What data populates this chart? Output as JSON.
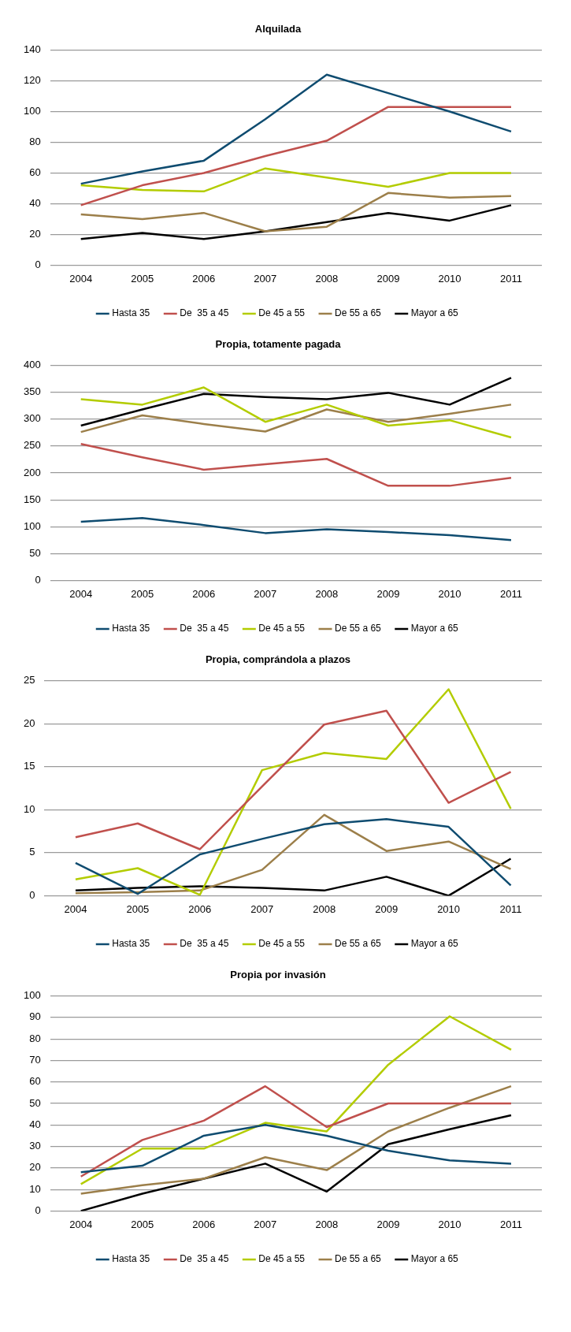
{
  "chart_data": [
    {
      "type": "line",
      "title": "Alquilada",
      "categories": [
        "2004",
        "2005",
        "2006",
        "2007",
        "2008",
        "2009",
        "2010",
        "2011"
      ],
      "ylim": [
        0,
        140
      ],
      "yticks": [
        0,
        20,
        40,
        60,
        80,
        100,
        120,
        140
      ],
      "grid": "y",
      "legend": "bottom",
      "series": [
        {
          "name": "Hasta 35",
          "color": "#0f4c70",
          "values": [
            53,
            61,
            68,
            95,
            124,
            112,
            100,
            87
          ]
        },
        {
          "name": "De  35 a 45",
          "color": "#c0504d",
          "values": [
            39,
            52,
            60,
            71,
            81,
            103,
            103,
            103
          ]
        },
        {
          "name": "De 45 a 55",
          "color": "#b3cc00",
          "values": [
            52,
            49,
            48,
            63,
            57,
            51,
            60,
            60
          ]
        },
        {
          "name": "De 55 a 65",
          "color": "#9c7f4a",
          "values": [
            33,
            30,
            34,
            22,
            25,
            47,
            44,
            45
          ]
        },
        {
          "name": "Mayor a 65",
          "color": "#000000",
          "values": [
            17,
            21,
            17,
            22,
            28,
            34,
            29,
            39
          ]
        }
      ]
    },
    {
      "type": "line",
      "title": "Propia, totamente pagada",
      "categories": [
        "2004",
        "2005",
        "2006",
        "2007",
        "2008",
        "2009",
        "2010",
        "2011"
      ],
      "ylim": [
        0,
        400
      ],
      "yticks": [
        0,
        50,
        100,
        150,
        200,
        250,
        300,
        350,
        400
      ],
      "grid": "y",
      "legend": "bottom",
      "series": [
        {
          "name": "Hasta 35",
          "color": "#0f4c70",
          "values": [
            109,
            116,
            103,
            88,
            95,
            90,
            84,
            75
          ]
        },
        {
          "name": "De  35 a 45",
          "color": "#c0504d",
          "values": [
            254,
            229,
            206,
            216,
            226,
            176,
            176,
            191
          ]
        },
        {
          "name": "De 45 a 55",
          "color": "#b3cc00",
          "values": [
            337,
            327,
            359,
            295,
            327,
            288,
            298,
            266
          ]
        },
        {
          "name": "De 55 a 65",
          "color": "#9c7f4a",
          "values": [
            276,
            307,
            291,
            277,
            318,
            295,
            310,
            327
          ]
        },
        {
          "name": "Mayor a 65",
          "color": "#000000",
          "values": [
            288,
            318,
            347,
            341,
            337,
            349,
            327,
            377
          ]
        }
      ]
    },
    {
      "type": "line",
      "title": "Propia, comprándola a plazos",
      "categories": [
        "2004",
        "2005",
        "2006",
        "2007",
        "2008",
        "2009",
        "2010",
        "2011"
      ],
      "ylim": [
        0,
        25
      ],
      "yticks": [
        0,
        5,
        10,
        15,
        20,
        25
      ],
      "grid": "y",
      "legend": "bottom",
      "series": [
        {
          "name": "Hasta 35",
          "color": "#0f4c70",
          "values": [
            3.8,
            0.2,
            4.8,
            6.6,
            8.3,
            8.9,
            8.0,
            1.2
          ]
        },
        {
          "name": "De  35 a 45",
          "color": "#c0504d",
          "values": [
            6.8,
            8.4,
            5.4,
            12.7,
            19.9,
            21.5,
            10.8,
            14.4
          ]
        },
        {
          "name": "De 45 a 55",
          "color": "#b3cc00",
          "values": [
            1.9,
            3.2,
            0.1,
            14.6,
            16.6,
            15.9,
            24,
            10.1
          ]
        },
        {
          "name": "De 55 a 65",
          "color": "#9c7f4a",
          "values": [
            0.3,
            0.4,
            0.6,
            3.0,
            9.4,
            5.2,
            6.3,
            3.1
          ]
        },
        {
          "name": "Mayor a 65",
          "color": "#000000",
          "values": [
            0.6,
            0.9,
            1.1,
            0.9,
            0.6,
            2.2,
            0,
            4.3
          ]
        }
      ]
    },
    {
      "type": "line",
      "title": "Propia por invasión",
      "categories": [
        "2004",
        "2005",
        "2006",
        "2007",
        "2008",
        "2009",
        "2010",
        "2011"
      ],
      "ylim": [
        0,
        100
      ],
      "yticks": [
        0,
        10,
        20,
        30,
        40,
        50,
        60,
        70,
        80,
        90,
        100
      ],
      "grid": "y",
      "legend": "bottom",
      "series": [
        {
          "name": "Hasta 35",
          "color": "#0f4c70",
          "values": [
            18,
            21,
            35,
            40,
            35,
            28,
            23.5,
            22
          ]
        },
        {
          "name": "De  35 a 45",
          "color": "#c0504d",
          "values": [
            16,
            33,
            42,
            58,
            39,
            50,
            50,
            50
          ]
        },
        {
          "name": "De 45 a 55",
          "color": "#b3cc00",
          "values": [
            12.5,
            29,
            29,
            41,
            37,
            68,
            90.5,
            75
          ]
        },
        {
          "name": "De 55 a 65",
          "color": "#9c7f4a",
          "values": [
            8,
            12,
            15,
            25,
            19,
            37,
            48,
            58
          ]
        },
        {
          "name": "Mayor a 65",
          "color": "#000000",
          "values": [
            0,
            8,
            15,
            22,
            9,
            31,
            38,
            44.5
          ]
        }
      ]
    }
  ]
}
